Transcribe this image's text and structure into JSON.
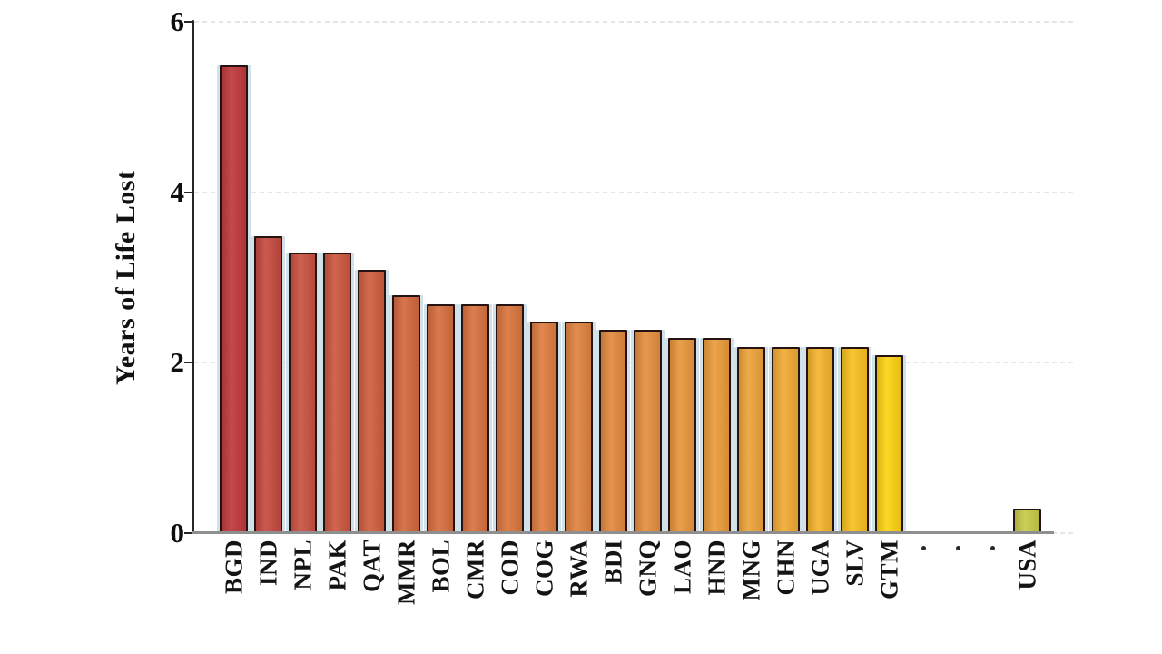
{
  "figure": {
    "background_color": "#ffffff",
    "axis_color": "#262626",
    "baseline_color": "#8f8f8f",
    "gridline_color": "#e6e6ea",
    "label_color": "#141414"
  },
  "chart_data": {
    "type": "bar",
    "title": "",
    "xlabel": "",
    "ylabel": "Years of Life Lost",
    "ylim": [
      0,
      6
    ],
    "yticks": [
      0,
      2,
      4,
      6
    ],
    "grid": "horizontal-dashed",
    "legend": "none",
    "bars": [
      {
        "code": "BGD",
        "value": 5.5,
        "color": "#bf3a3d"
      },
      {
        "code": "IND",
        "value": 3.5,
        "color": "#c64b41"
      },
      {
        "code": "NPL",
        "value": 3.3,
        "color": "#ca5341"
      },
      {
        "code": "PAK",
        "value": 3.3,
        "color": "#cd5941"
      },
      {
        "code": "QAT",
        "value": 3.1,
        "color": "#d06040"
      },
      {
        "code": "MMR",
        "value": 2.8,
        "color": "#d46940"
      },
      {
        "code": "BOL",
        "value": 2.7,
        "color": "#d76f40"
      },
      {
        "code": "CMR",
        "value": 2.7,
        "color": "#d97340"
      },
      {
        "code": "COD",
        "value": 2.7,
        "color": "#db7640"
      },
      {
        "code": "COG",
        "value": 2.5,
        "color": "#de7e41"
      },
      {
        "code": "RWA",
        "value": 2.5,
        "color": "#e18441"
      },
      {
        "code": "BDI",
        "value": 2.4,
        "color": "#e38a40"
      },
      {
        "code": "GNQ",
        "value": 2.4,
        "color": "#e6903f"
      },
      {
        "code": "LAO",
        "value": 2.3,
        "color": "#e8973d"
      },
      {
        "code": "HND",
        "value": 2.3,
        "color": "#eb9d3b"
      },
      {
        "code": "MNG",
        "value": 2.2,
        "color": "#eea439"
      },
      {
        "code": "CHN",
        "value": 2.2,
        "color": "#f1ab35"
      },
      {
        "code": "UGA",
        "value": 2.2,
        "color": "#f5b42d"
      },
      {
        "code": "SLV",
        "value": 2.2,
        "color": "#f9c121"
      },
      {
        "code": "GTM",
        "value": 2.1,
        "color": "#fdd313"
      },
      {
        "code": "·",
        "value": null
      },
      {
        "code": "·",
        "value": null
      },
      {
        "code": "·",
        "value": null
      },
      {
        "code": "USA",
        "value": 0.3,
        "color": "#c7cb49"
      }
    ]
  }
}
